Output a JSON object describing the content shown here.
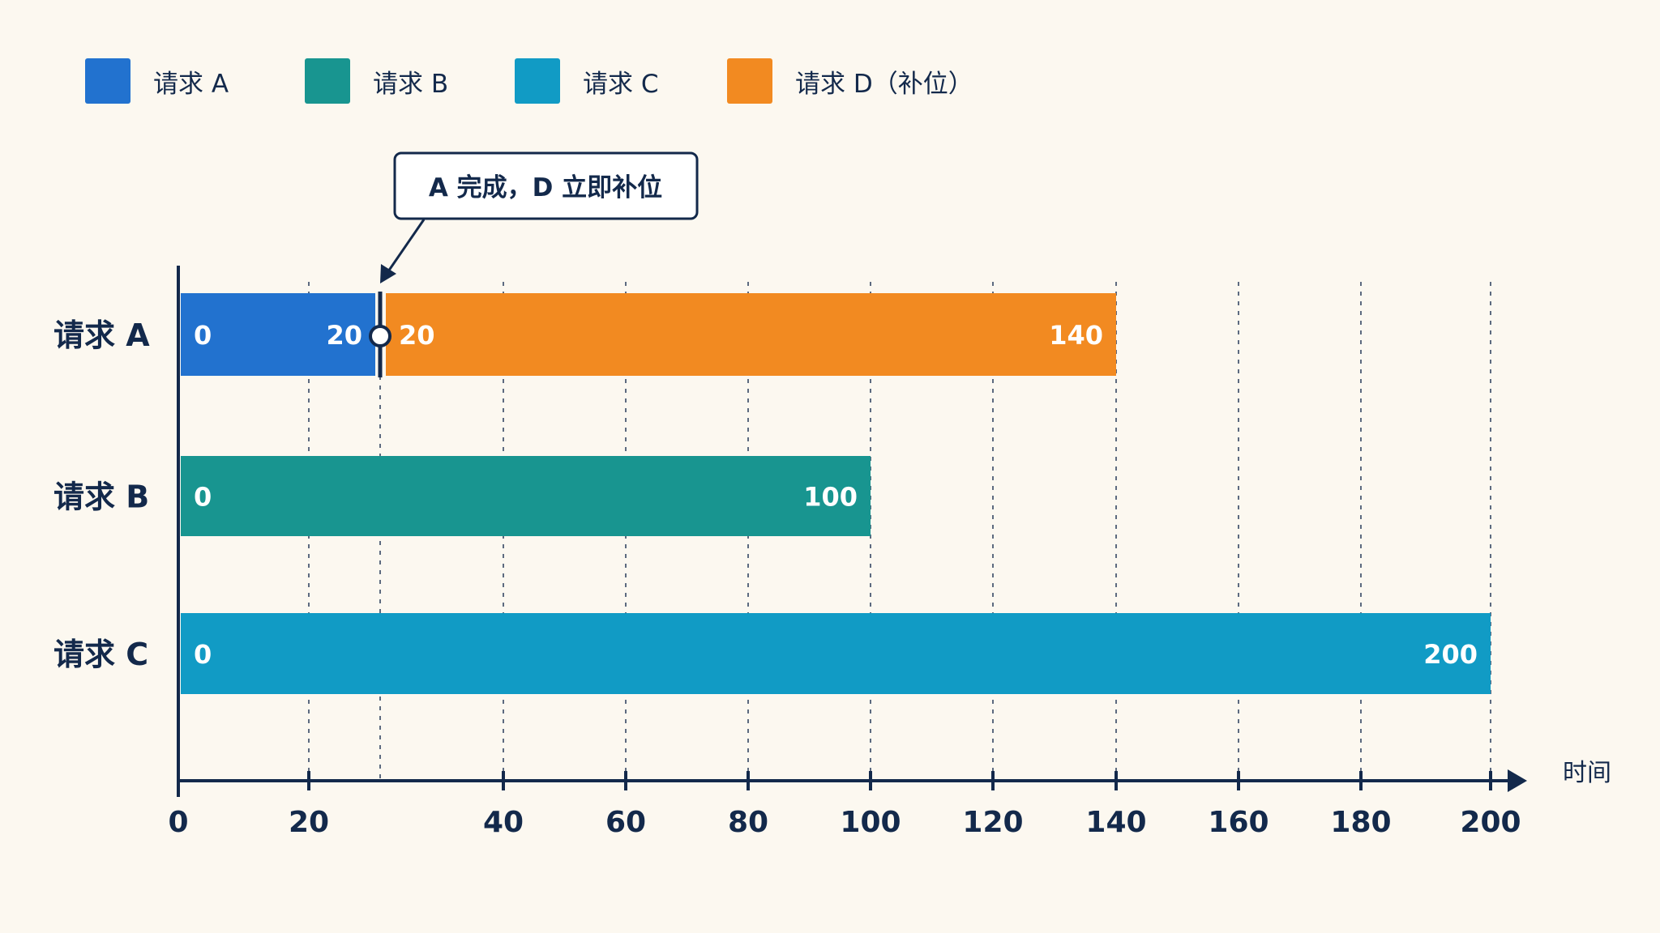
{
  "legend": {
    "items": [
      {
        "label": "请求 A",
        "color": "#2272cf"
      },
      {
        "label": "请求 B",
        "color": "#189590"
      },
      {
        "label": "请求 C",
        "color": "#119bc5"
      },
      {
        "label": "请求 D（补位）",
        "color": "#f28a21"
      }
    ]
  },
  "annotation": {
    "text": "A 完成，D 立即补位"
  },
  "colors": {
    "background": "#fcf8f0",
    "axis": "#13294b",
    "grid": "#13294b",
    "label_on_bar": "#ffffff"
  },
  "chart_data": {
    "type": "bar",
    "subtype": "horizontal-timeline",
    "xlabel": "时间",
    "ylabel": "",
    "title": "",
    "xticks": [
      0,
      20,
      40,
      60,
      80,
      100,
      120,
      140,
      160,
      180,
      200
    ],
    "xlim": [
      0,
      200
    ],
    "grid": true,
    "legend_placement": "top-left",
    "categories": [
      "请求 A",
      "请求 B",
      "请求 C"
    ],
    "segments": [
      {
        "row": "请求 A",
        "series": "请求 A",
        "start": 0,
        "end": 20,
        "start_label": "0",
        "end_label": "20",
        "color": "#2272cf"
      },
      {
        "row": "请求 A",
        "series": "请求 D（补位）",
        "start": 20,
        "end": 140,
        "start_label": "20",
        "end_label": "140",
        "color": "#f28a21"
      },
      {
        "row": "请求 B",
        "series": "请求 B",
        "start": 0,
        "end": 100,
        "start_label": "0",
        "end_label": "100",
        "color": "#189590"
      },
      {
        "row": "请求 C",
        "series": "请求 C",
        "start": 0,
        "end": 200,
        "start_label": "0",
        "end_label": "200",
        "color": "#119bc5"
      }
    ],
    "marker": {
      "row": "请求 A",
      "x": 20,
      "label": "A 完成，D 立即补位"
    }
  }
}
